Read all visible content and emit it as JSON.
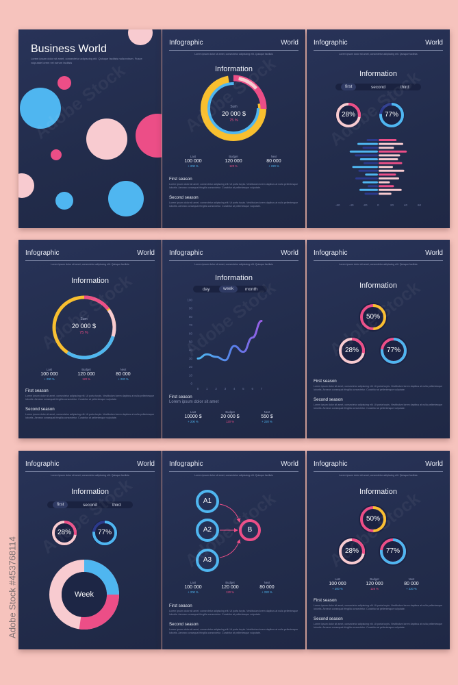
{
  "colors": {
    "bg": "#f6c3bd",
    "card": "#243055",
    "blue": "#4fb6f0",
    "pink": "#ec4e87",
    "yellow": "#f8bf2f",
    "light": "#f8cbd0",
    "navy": "#2c3a8c"
  },
  "watermark": "Adobe Stock",
  "stock_id": "#453768114",
  "header": {
    "left": "Infographic",
    "right": "World"
  },
  "lorem_short": "Lorem ipsum dolor sit amet, consectetur adipiscing elit. Quisque facilisis",
  "lorem_long": "Lorem ipsum dolor sit amet, consectetur adipiscing elit. Ut porta turpis. Vestibulum lorem dapibus at nulla pellentesque lobortis. Aenean consequat fringilla consectetur. Curabitur at pellentesque vulputate.",
  "cover": {
    "title": "Business World",
    "text": "Lorem ipsum dolor sit amet, consectetur adipiscing elit. Quisque facilisis nulla rutrum. Fusce vulputate lorem vel rutrum facilisis"
  },
  "info_title": "Information",
  "sum": {
    "label": "Sum",
    "value": "20 000 $",
    "pct": "75 %"
  },
  "tabs_ordinal": [
    "first",
    "second",
    "third"
  ],
  "tabs_period": [
    "day",
    "week",
    "month"
  ],
  "rings": {
    "p28": "28%",
    "p77": "77%",
    "p50": "50%"
  },
  "stats": [
    {
      "key": "Last",
      "value": "100 000",
      "delta": "+ 200 %"
    },
    {
      "key": "Budget",
      "value": "120 000",
      "delta": "120 %"
    },
    {
      "key": "Next",
      "value": "80 000",
      "delta": "+ 220 %"
    }
  ],
  "stats_line": [
    {
      "key": "Last",
      "value": "10000 $",
      "delta": "+ 200 %"
    },
    {
      "key": "Budget",
      "value": "20 000 $",
      "delta": "120 %"
    },
    {
      "key": "Next",
      "value": "550 $",
      "delta": "+ 220 %"
    }
  ],
  "seasons": {
    "first": "First season",
    "second": "Second season"
  },
  "line_caption": {
    "title": "First season",
    "sub": "Lorem ipsum dolor sit amet"
  },
  "week_label": "Week",
  "flow": {
    "a1": "A1",
    "a2": "A2",
    "a3": "A3",
    "b": "B"
  },
  "bar_axis": [
    "-60",
    "-40",
    "-20",
    "0",
    "20",
    "40",
    "60"
  ],
  "chart_data": {
    "type": "line",
    "x": [
      0,
      1,
      2,
      3,
      4,
      5,
      6,
      7
    ],
    "ylim": [
      0,
      100
    ],
    "yticks": [
      "0",
      "10",
      "20",
      "30",
      "40",
      "50",
      "60",
      "70",
      "80",
      "90",
      "100"
    ],
    "xticks": [
      "0",
      "1",
      "2",
      "3",
      "4",
      "5",
      "6",
      "7"
    ],
    "values": [
      30,
      35,
      32,
      28,
      45,
      38,
      55,
      75
    ]
  },
  "butterfly": {
    "left": [
      22,
      40,
      30,
      55,
      45,
      35,
      28,
      50,
      38,
      25,
      44,
      30,
      20,
      36,
      26
    ],
    "right": [
      35,
      48,
      30,
      55,
      42,
      38,
      46,
      28,
      50,
      34,
      40,
      22,
      30,
      45,
      25
    ]
  }
}
